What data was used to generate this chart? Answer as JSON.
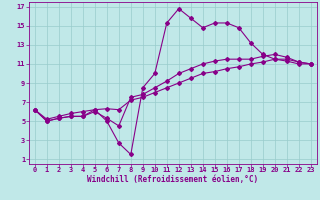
{
  "title": "",
  "xlabel": "Windchill (Refroidissement éolien,°C)",
  "xlim": [
    -0.5,
    23.5
  ],
  "ylim": [
    0.5,
    17.5
  ],
  "xticks": [
    0,
    1,
    2,
    3,
    4,
    5,
    6,
    7,
    8,
    9,
    10,
    11,
    12,
    13,
    14,
    15,
    16,
    17,
    18,
    19,
    20,
    21,
    22,
    23
  ],
  "yticks": [
    1,
    3,
    5,
    7,
    9,
    11,
    13,
    15,
    17
  ],
  "background_color": "#c0e8e8",
  "line_color": "#880088",
  "grid_color": "#99cccc",
  "line1_x": [
    0,
    1,
    2,
    3,
    4,
    5,
    6,
    7,
    8,
    9,
    10,
    11,
    12,
    13,
    14,
    15,
    16,
    17,
    18,
    19,
    20,
    21,
    22,
    23
  ],
  "line1_y": [
    6.2,
    5.0,
    5.3,
    5.5,
    5.5,
    6.2,
    5.0,
    2.7,
    1.5,
    8.5,
    10.0,
    15.3,
    16.8,
    15.8,
    14.8,
    15.3,
    15.3,
    14.8,
    13.2,
    12.0,
    11.5,
    11.3,
    11.0,
    11.0
  ],
  "line2_x": [
    0,
    1,
    2,
    3,
    4,
    5,
    6,
    7,
    8,
    9,
    10,
    11,
    12,
    13,
    14,
    15,
    16,
    17,
    18,
    19,
    20,
    21,
    22,
    23
  ],
  "line2_y": [
    6.2,
    5.0,
    5.3,
    5.5,
    5.5,
    6.0,
    5.3,
    4.5,
    7.5,
    7.8,
    8.5,
    9.2,
    10.0,
    10.5,
    11.0,
    11.3,
    11.5,
    11.5,
    11.5,
    11.8,
    12.0,
    11.7,
    11.2,
    11.0
  ],
  "line3_x": [
    0,
    1,
    2,
    3,
    4,
    5,
    6,
    7,
    8,
    9,
    10,
    11,
    12,
    13,
    14,
    15,
    16,
    17,
    18,
    19,
    20,
    21,
    22,
    23
  ],
  "line3_y": [
    6.2,
    5.2,
    5.5,
    5.8,
    6.0,
    6.2,
    6.3,
    6.2,
    7.2,
    7.5,
    8.0,
    8.5,
    9.0,
    9.5,
    10.0,
    10.2,
    10.5,
    10.7,
    11.0,
    11.2,
    11.5,
    11.5,
    11.2,
    11.0
  ],
  "tick_fontsize": 5.0,
  "label_fontsize": 5.5,
  "marker_size": 2.0,
  "line_width": 0.8
}
